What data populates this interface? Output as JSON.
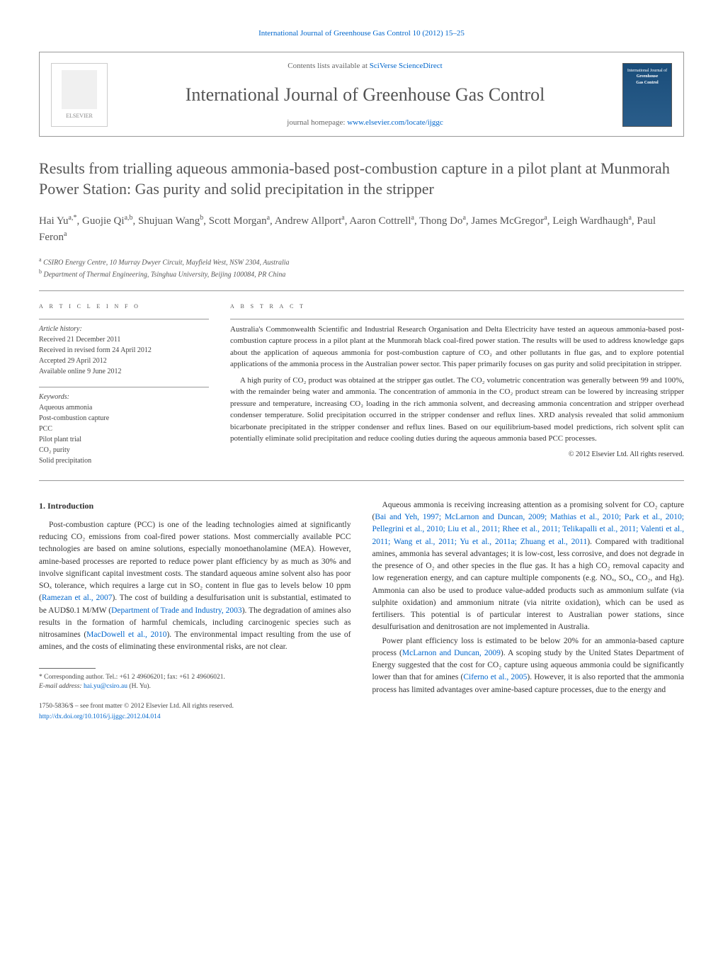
{
  "header": {
    "journal_page_ref": "International Journal of Greenhouse Gas Control 10 (2012) 15–25",
    "contents_prefix": "Contents lists available at ",
    "contents_link": "SciVerse ScienceDirect",
    "journal_name": "International Journal of Greenhouse Gas Control",
    "homepage_prefix": "journal homepage: ",
    "homepage_url": "www.elsevier.com/locate/ijggc",
    "elsevier_label": "ELSEVIER",
    "cover_text_1": "International Journal of",
    "cover_text_2": "Greenhouse",
    "cover_text_3": "Gas Control"
  },
  "article": {
    "title": "Results from trialling aqueous ammonia-based post-combustion capture in a pilot plant at Munmorah Power Station: Gas purity and solid precipitation in the stripper",
    "authors_html": "Hai Yu<sup>a,*</sup>, Guojie Qi<sup>a,b</sup>, Shujuan Wang<sup>b</sup>, Scott Morgan<sup>a</sup>, Andrew Allport<sup>a</sup>, Aaron Cottrell<sup>a</sup>, Thong Do<sup>a</sup>, James McGregor<sup>a</sup>, Leigh Wardhaugh<sup>a</sup>, Paul Feron<sup>a</sup>",
    "affiliations": [
      {
        "sup": "a",
        "text": "CSIRO Energy Centre, 10 Murray Dwyer Circuit, Mayfield West, NSW 2304, Australia"
      },
      {
        "sup": "b",
        "text": "Department of Thermal Engineering, Tsinghua University, Beijing 100084, PR China"
      }
    ]
  },
  "info": {
    "heading": "a r t i c l e   i n f o",
    "history_label": "Article history:",
    "history": [
      "Received 21 December 2011",
      "Received in revised form 24 April 2012",
      "Accepted 29 April 2012",
      "Available online 9 June 2012"
    ],
    "keywords_label": "Keywords:",
    "keywords": [
      "Aqueous ammonia",
      "Post-combustion capture",
      "PCC",
      "Pilot plant trial",
      "CO₂ purity",
      "Solid precipitation"
    ]
  },
  "abstract": {
    "heading": "a b s t r a c t",
    "paragraphs": [
      "Australia's Commonwealth Scientific and Industrial Research Organisation and Delta Electricity have tested an aqueous ammonia-based post-combustion capture process in a pilot plant at the Munmorah black coal-fired power station. The results will be used to address knowledge gaps about the application of aqueous ammonia for post-combustion capture of CO₂ and other pollutants in flue gas, and to explore potential applications of the ammonia process in the Australian power sector. This paper primarily focuses on gas purity and solid precipitation in stripper.",
      "A high purity of CO₂ product was obtained at the stripper gas outlet. The CO₂ volumetric concentration was generally between 99 and 100%, with the remainder being water and ammonia. The concentration of ammonia in the CO₂ product stream can be lowered by increasing stripper pressure and temperature, increasing CO₂ loading in the rich ammonia solvent, and decreasing ammonia concentration and stripper overhead condenser temperature. Solid precipitation occurred in the stripper condenser and reflux lines. XRD analysis revealed that solid ammonium bicarbonate precipitated in the stripper condenser and reflux lines. Based on our equilibrium-based model predictions, rich solvent split can potentially eliminate solid precipitation and reduce cooling duties during the aqueous ammonia based PCC processes."
    ],
    "copyright": "© 2012 Elsevier Ltd. All rights reserved."
  },
  "body": {
    "section_number": "1.",
    "section_title": "Introduction",
    "left_paragraphs": [
      "Post-combustion capture (PCC) is one of the leading technologies aimed at significantly reducing CO₂ emissions from coal-fired power stations. Most commercially available PCC technologies are based on amine solutions, especially monoethanolamine (MEA). However, amine-based processes are reported to reduce power plant efficiency by as much as 30% and involve significant capital investment costs. The standard aqueous amine solvent also has poor SOₓ tolerance, which requires a large cut in SO₂ content in flue gas to levels below 10 ppm (<a>Ramezan et al., 2007</a>). The cost of building a desulfurisation unit is substantial, estimated to be AUD$0.1 M/MW (<a>Department of Trade and Industry, 2003</a>). The degradation of amines also results in the formation of harmful chemicals, including carcinogenic species such as nitrosamines (<a>MacDowell et al., 2010</a>). The environmental impact resulting from the use of amines, and the costs of eliminating these environmental risks, are not clear."
    ],
    "right_paragraphs": [
      "Aqueous ammonia is receiving increasing attention as a promising solvent for CO₂ capture (<a>Bai and Yeh, 1997; McLarnon and Duncan, 2009; Mathias et al., 2010; Park et al., 2010; Pellegrini et al., 2010; Liu et al., 2011; Rhee et al., 2011; Telikapalli et al., 2011; Valenti et al., 2011; Wang et al., 2011; Yu et al., 2011a; Zhuang et al., 2011</a>). Compared with traditional amines, ammonia has several advantages; it is low-cost, less corrosive, and does not degrade in the presence of O₂ and other species in the flue gas. It has a high CO₂ removal capacity and low regeneration energy, and can capture multiple components (e.g. NOₓ, SOₓ, CO₂, and Hg). Ammonia can also be used to produce value-added products such as ammonium sulfate (via sulphite oxidation) and ammonium nitrate (via nitrite oxidation), which can be used as fertilisers. This potential is of particular interest to Australian power stations, since desulfurisation and denitrosation are not implemented in Australia.",
      "Power plant efficiency loss is estimated to be below 20% for an ammonia-based capture process (<a>McLarnon and Duncan, 2009</a>). A scoping study by the United States Department of Energy suggested that the cost for CO₂ capture using aqueous ammonia could be significantly lower than that for amines (<a>Ciferno et al., 2005</a>). However, it is also reported that the ammonia process has limited advantages over amine-based capture processes, due to the energy and"
    ]
  },
  "footnote": {
    "marker": "*",
    "text": "Corresponding author. Tel.: +61 2 49606201; fax: +61 2 49606021.",
    "email_label": "E-mail address:",
    "email": "hai.yu@csiro.au",
    "email_suffix": "(H. Yu)."
  },
  "footer": {
    "issn_line": "1750-5836/$ – see front matter © 2012 Elsevier Ltd. All rights reserved.",
    "doi_url": "http://dx.doi.org/10.1016/j.ijggc.2012.04.014"
  },
  "colors": {
    "link": "#0066cc",
    "heading_gray": "#545454",
    "rule": "#999999",
    "body_text": "#333333",
    "muted": "#666666"
  }
}
